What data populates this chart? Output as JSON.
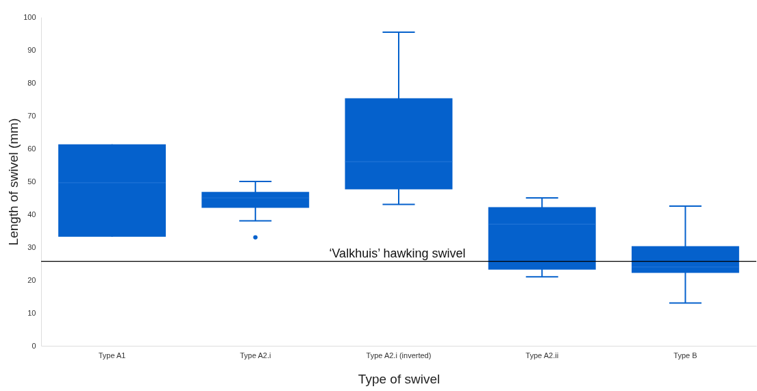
{
  "chart_data": {
    "type": "box",
    "xlabel": "Type of swivel",
    "ylabel": "Length of swivel (mm)",
    "categories": [
      "Type A1",
      "Type A2.i",
      "Type A2.i (inverted)",
      "Type A2.ii",
      "Type B"
    ],
    "ylim": [
      0,
      100
    ],
    "yticks": [
      0,
      10,
      20,
      30,
      40,
      50,
      60,
      70,
      80,
      90,
      100
    ],
    "grid": false,
    "series": [
      {
        "color": "#0561cc",
        "boxes": [
          {
            "low": 33.2,
            "q1": 33.2,
            "median": 49.6,
            "q3": 61.3,
            "high": 61.3
          },
          {
            "low": 38,
            "q1": 42,
            "median": 45,
            "q3": 46.8,
            "high": 50,
            "outliers": [
              33
            ]
          },
          {
            "low": 43,
            "q1": 47.6,
            "median": 56,
            "q3": 75.3,
            "high": 95.4
          },
          {
            "low": 21,
            "q1": 23.2,
            "median": 37,
            "q3": 42.2,
            "high": 45
          },
          {
            "low": 13,
            "q1": 22.2,
            "median": 24,
            "q3": 30.3,
            "high": 42.5
          }
        ]
      }
    ],
    "ref_lines": [
      {
        "axis": "y",
        "value": 25.7,
        "label": "‘Valkhuis’ hawking swivel",
        "color": "#000000"
      }
    ]
  }
}
